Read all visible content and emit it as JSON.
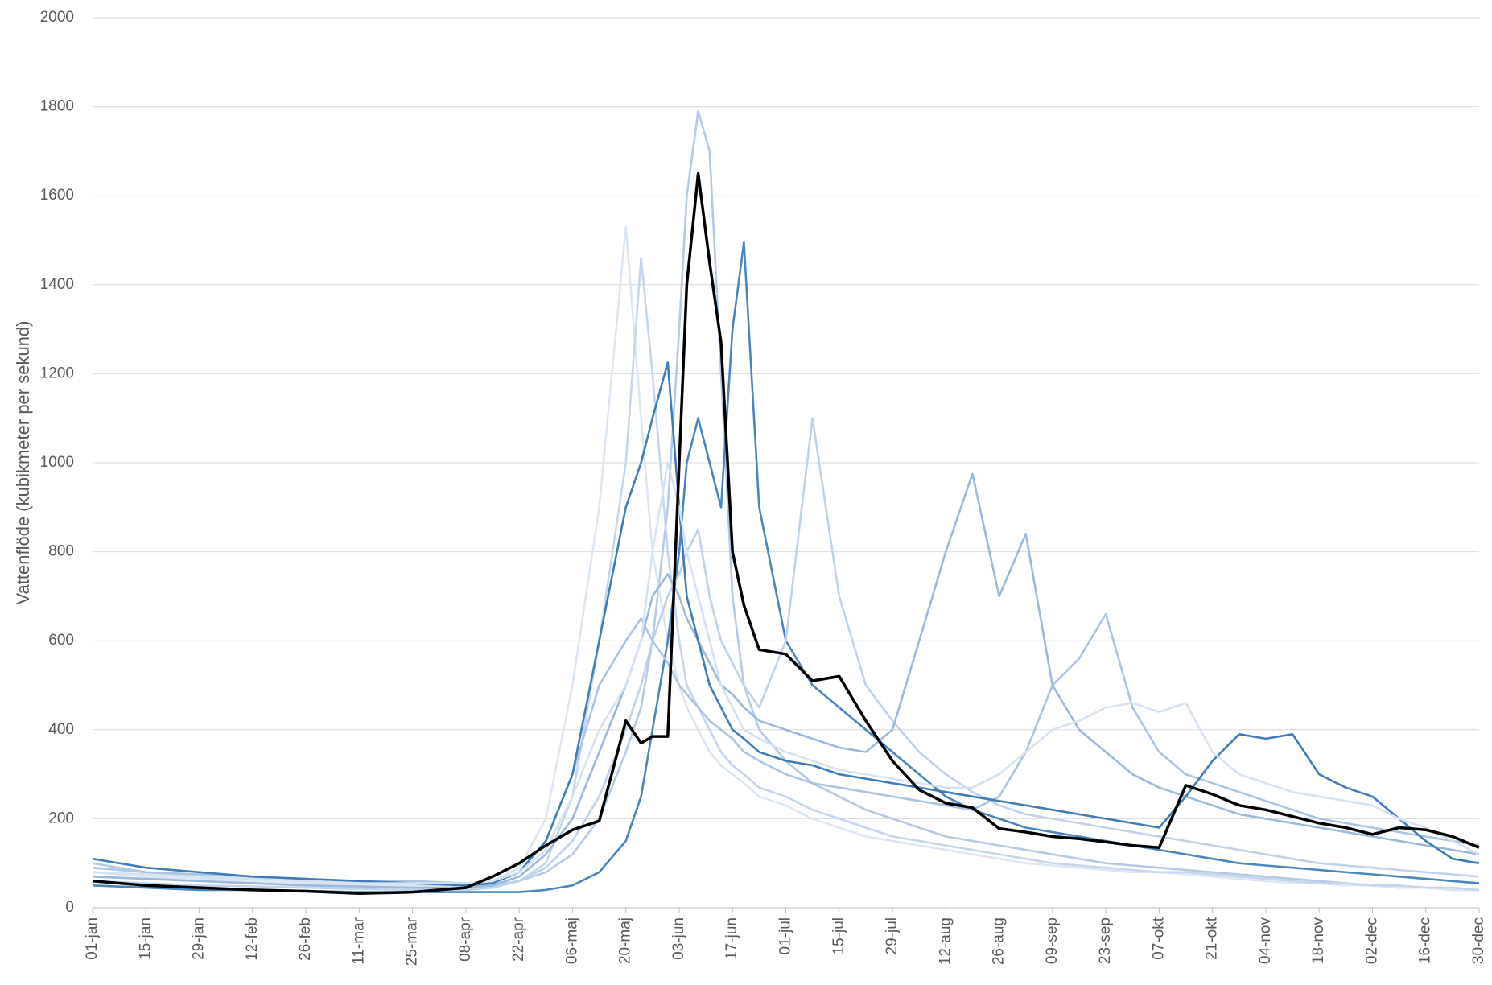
{
  "chart_data": {
    "type": "line",
    "y_label": "Vattenflöde (kubikmeter per sekund)",
    "x": [
      1,
      15,
      29,
      43,
      57,
      71,
      85,
      99,
      106,
      113,
      120,
      127,
      134,
      141,
      145,
      148,
      152,
      155,
      157,
      160,
      163,
      166,
      169,
      172,
      176,
      183,
      190,
      197,
      204,
      211,
      218,
      225,
      232,
      239,
      246,
      253,
      260,
      267,
      274,
      281,
      288,
      295,
      302,
      309,
      316,
      323,
      330,
      337,
      344,
      351,
      358,
      365
    ],
    "xlim": [
      1,
      365
    ],
    "xticks": [
      {
        "value": 1,
        "label": "01-jan"
      },
      {
        "value": 15,
        "label": "15-jan"
      },
      {
        "value": 29,
        "label": "29-jan"
      },
      {
        "value": 43,
        "label": "12-feb"
      },
      {
        "value": 57,
        "label": "26-feb"
      },
      {
        "value": 71,
        "label": "11-mar"
      },
      {
        "value": 85,
        "label": "25-mar"
      },
      {
        "value": 99,
        "label": "08-apr"
      },
      {
        "value": 113,
        "label": "22-apr"
      },
      {
        "value": 127,
        "label": "06-maj"
      },
      {
        "value": 141,
        "label": "20-maj"
      },
      {
        "value": 155,
        "label": "03-jun"
      },
      {
        "value": 169,
        "label": "17-jun"
      },
      {
        "value": 183,
        "label": "01-jul"
      },
      {
        "value": 197,
        "label": "15-jul"
      },
      {
        "value": 211,
        "label": "29-jul"
      },
      {
        "value": 225,
        "label": "12-aug"
      },
      {
        "value": 239,
        "label": "26-aug"
      },
      {
        "value": 253,
        "label": "09-sep"
      },
      {
        "value": 267,
        "label": "23-sep"
      },
      {
        "value": 281,
        "label": "07-okt"
      },
      {
        "value": 295,
        "label": "21-okt"
      },
      {
        "value": 309,
        "label": "04-nov"
      },
      {
        "value": 323,
        "label": "18-nov"
      },
      {
        "value": 337,
        "label": "02-dec"
      },
      {
        "value": 351,
        "label": "16-dec"
      },
      {
        "value": 365,
        "label": "30-dec"
      }
    ],
    "ylim": [
      0,
      2000
    ],
    "yticks": [
      0,
      200,
      400,
      600,
      800,
      1000,
      1200,
      1400,
      1600,
      1800,
      2000
    ],
    "grid": true,
    "series": [
      {
        "color": "#b4c9e3",
        "values": [
          100,
          80,
          70,
          60,
          55,
          50,
          50,
          45,
          50,
          60,
          80,
          120,
          200,
          350,
          450,
          600,
          900,
          1300,
          1600,
          1790,
          1700,
          1200,
          700,
          500,
          400,
          330,
          280,
          250,
          220,
          200,
          180,
          160,
          150,
          140,
          130,
          120,
          110,
          100,
          95,
          90,
          85,
          80,
          75,
          70,
          65,
          60,
          55,
          50,
          45,
          45,
          40,
          40
        ]
      },
      {
        "color": "#dce6f2",
        "values": [
          80,
          70,
          65,
          60,
          55,
          50,
          50,
          45,
          60,
          90,
          200,
          500,
          900,
          1530,
          1100,
          800,
          600,
          500,
          450,
          400,
          350,
          320,
          300,
          280,
          250,
          230,
          200,
          180,
          160,
          150,
          140,
          130,
          120,
          110,
          100,
          95,
          90,
          85,
          80,
          80,
          75,
          70,
          65,
          60,
          55,
          55,
          50,
          50,
          45,
          45,
          40,
          40
        ]
      },
      {
        "color": "#c5d6ec",
        "values": [
          70,
          65,
          60,
          55,
          50,
          45,
          45,
          40,
          45,
          60,
          100,
          250,
          600,
          1000,
          1460,
          1200,
          800,
          600,
          500,
          450,
          400,
          350,
          320,
          300,
          270,
          250,
          220,
          200,
          180,
          160,
          150,
          140,
          130,
          120,
          110,
          100,
          95,
          90,
          85,
          80,
          80,
          75,
          70,
          65,
          60,
          55,
          55,
          50,
          50,
          45,
          45,
          40
        ]
      },
      {
        "color": "#4a86be",
        "values": [
          50,
          45,
          40,
          40,
          38,
          35,
          35,
          35,
          35,
          35,
          40,
          50,
          80,
          150,
          250,
          400,
          600,
          800,
          1000,
          1100,
          1000,
          900,
          1300,
          1495,
          900,
          600,
          500,
          450,
          400,
          350,
          300,
          250,
          220,
          200,
          180,
          170,
          160,
          150,
          140,
          130,
          120,
          110,
          100,
          95,
          90,
          85,
          80,
          75,
          70,
          65,
          60,
          55
        ]
      },
      {
        "color": "#c0d2ea",
        "values": [
          60,
          55,
          50,
          48,
          45,
          42,
          40,
          40,
          45,
          60,
          90,
          150,
          250,
          400,
          500,
          600,
          700,
          750,
          800,
          850,
          700,
          600,
          550,
          500,
          450,
          600,
          1100,
          700,
          500,
          420,
          350,
          300,
          260,
          230,
          210,
          200,
          190,
          180,
          170,
          160,
          150,
          140,
          130,
          120,
          110,
          100,
          95,
          90,
          85,
          80,
          75,
          70
        ]
      },
      {
        "color": "#9ab9dc",
        "values": [
          70,
          65,
          60,
          55,
          50,
          48,
          45,
          45,
          50,
          70,
          120,
          200,
          350,
          500,
          600,
          700,
          750,
          700,
          650,
          600,
          550,
          500,
          480,
          450,
          420,
          400,
          380,
          360,
          350,
          400,
          600,
          800,
          975,
          700,
          840,
          500,
          400,
          350,
          300,
          270,
          250,
          230,
          210,
          200,
          190,
          180,
          170,
          160,
          150,
          140,
          130,
          120
        ]
      },
      {
        "color": "#aac4e2",
        "values": [
          90,
          80,
          75,
          70,
          65,
          60,
          60,
          55,
          60,
          80,
          150,
          300,
          500,
          600,
          650,
          600,
          550,
          500,
          480,
          450,
          420,
          400,
          380,
          350,
          330,
          300,
          280,
          270,
          260,
          250,
          240,
          230,
          220,
          250,
          350,
          500,
          560,
          660,
          450,
          350,
          300,
          280,
          260,
          240,
          220,
          200,
          190,
          180,
          170,
          160,
          150,
          140
        ]
      },
      {
        "color": "#3f7cb8",
        "values": [
          110,
          90,
          80,
          70,
          65,
          60,
          55,
          50,
          55,
          80,
          150,
          300,
          600,
          900,
          1000,
          1100,
          1225,
          900,
          700,
          600,
          500,
          450,
          400,
          380,
          350,
          330,
          320,
          300,
          290,
          280,
          270,
          260,
          250,
          240,
          230,
          220,
          210,
          200,
          190,
          180,
          250,
          330,
          390,
          380,
          390,
          300,
          270,
          250,
          200,
          150,
          110,
          100
        ]
      },
      {
        "color": "#d6e2f0",
        "values": [
          80,
          75,
          70,
          65,
          60,
          55,
          55,
          55,
          60,
          80,
          130,
          250,
          400,
          500,
          600,
          800,
          1000,
          900,
          800,
          700,
          600,
          500,
          450,
          400,
          380,
          350,
          330,
          310,
          300,
          290,
          280,
          270,
          270,
          300,
          350,
          400,
          420,
          450,
          460,
          440,
          460,
          350,
          300,
          280,
          260,
          250,
          240,
          230,
          200,
          180,
          150,
          120
        ]
      },
      {
        "color": "#000000",
        "values": [
          60,
          50,
          45,
          40,
          37,
          32,
          35,
          45,
          70,
          100,
          140,
          175,
          195,
          420,
          370,
          385,
          385,
          1000,
          1400,
          1650,
          1450,
          1270,
          800,
          680,
          580,
          570,
          510,
          520,
          420,
          330,
          265,
          235,
          225,
          178,
          170,
          160,
          155,
          148,
          140,
          135,
          275,
          255,
          230,
          220,
          205,
          190,
          180,
          165,
          180,
          175,
          160,
          135
        ]
      }
    ]
  }
}
